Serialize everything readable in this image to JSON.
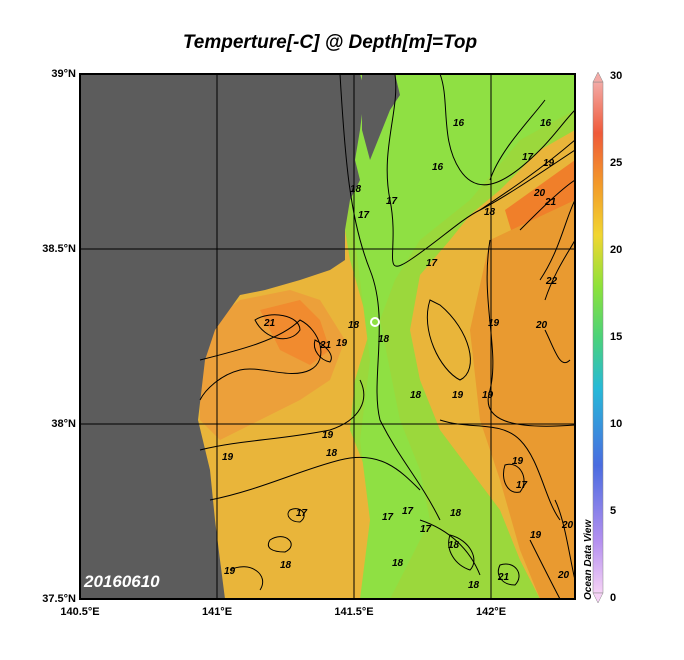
{
  "title": "Temperture[-C] @ Depth[m]=Top",
  "date_label": "20160610",
  "watermark": "Ocean Data View",
  "lat_ticks": [
    "39°N",
    "38.5°N",
    "38°N",
    "37.5°N"
  ],
  "lon_ticks": [
    "140.5°E",
    "141°E",
    "141.5°E",
    "142°E"
  ],
  "colorbar": {
    "min": 0,
    "max": 30,
    "ticks": [
      "30",
      "25",
      "20",
      "15",
      "10",
      "5",
      "0"
    ]
  },
  "contour_labels": [
    "16",
    "16",
    "16",
    "17",
    "17",
    "17",
    "17",
    "18",
    "18",
    "18",
    "19",
    "19",
    "19",
    "19",
    "19",
    "19",
    "20",
    "20",
    "20",
    "20",
    "21",
    "21",
    "21",
    "22",
    "17",
    "17",
    "17",
    "18",
    "18",
    "18",
    "18",
    "18",
    "18",
    "18",
    "19",
    "19",
    "19",
    "17",
    "21",
    "17",
    "19",
    "18"
  ],
  "colors": {
    "land": "#5c5c5c",
    "warm": "#f08a28",
    "mid": "#e8b832",
    "cool": "#7fe049",
    "frame": "#000000"
  }
}
